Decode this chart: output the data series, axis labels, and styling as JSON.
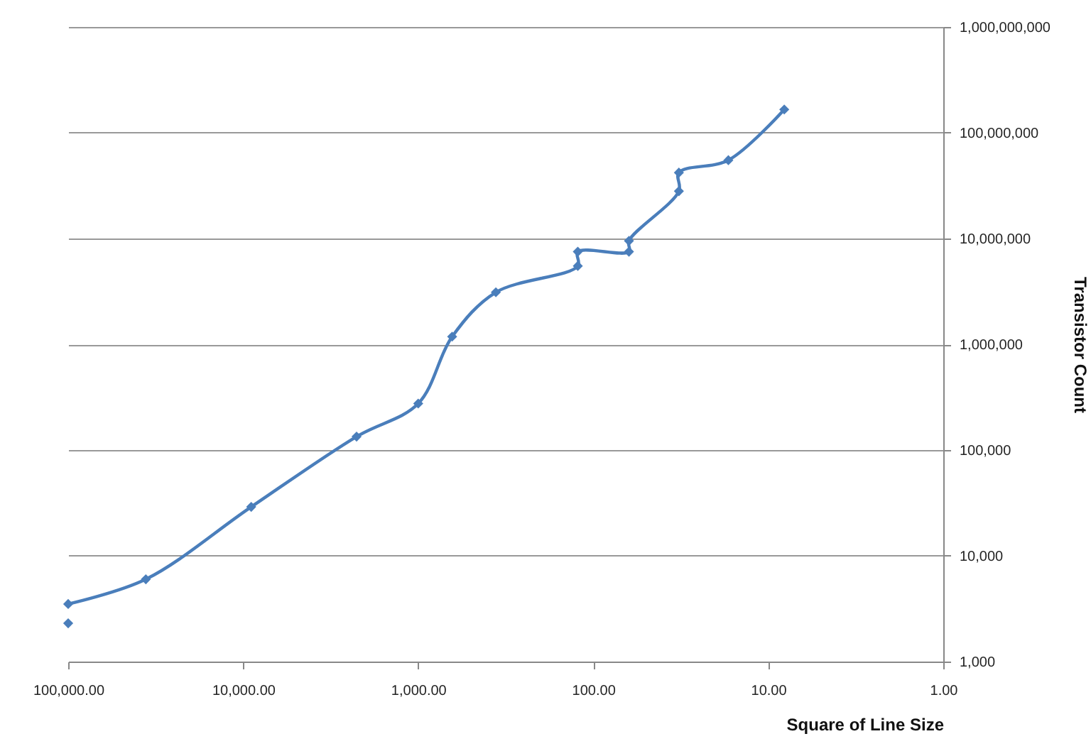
{
  "chart_data": {
    "type": "line",
    "xlabel": "Square of Line Size",
    "ylabel": "Transistor Count",
    "log": "xy",
    "grid": "y",
    "marker": "diamond",
    "line_style": "solid",
    "xlim": [
      100000,
      1
    ],
    "xticks": [
      {
        "value": 100000,
        "label": "100,000.00"
      },
      {
        "value": 10000,
        "label": "10,000.00"
      },
      {
        "value": 1000,
        "label": "1,000.00"
      },
      {
        "value": 100,
        "label": "100.00"
      },
      {
        "value": 10,
        "label": "10.00"
      },
      {
        "value": 1,
        "label": "1.00"
      }
    ],
    "ylim": [
      1000,
      1000000000
    ],
    "yticks": [
      {
        "value": 1000,
        "label": "1,000"
      },
      {
        "value": 10000,
        "label": "10,000"
      },
      {
        "value": 100000,
        "label": "100,000"
      },
      {
        "value": 1000000,
        "label": "1,000,000"
      },
      {
        "value": 10000000,
        "label": "10,000,000"
      },
      {
        "value": 100000000,
        "label": "100,000,000"
      },
      {
        "value": 1000000000,
        "label": "1,000,000,000"
      }
    ],
    "series": [
      {
        "color": "#4a7ebb",
        "x": [
          100000,
          36000,
          9000,
          2250,
          1000,
          640,
          360,
          122.5,
          122.5,
          62.5,
          62.5,
          32.4,
          32.4,
          16.9,
          8.1
        ],
        "values": [
          3500,
          6000,
          29000,
          134000,
          275000,
          1180000,
          3100000,
          5500000,
          7500000,
          7500000,
          9500000,
          28000000,
          42000000,
          55000000,
          166000000
        ]
      },
      {
        "type": "scatter",
        "color": "#4a7ebb",
        "x": [
          100000
        ],
        "values": [
          2300
        ]
      }
    ]
  }
}
